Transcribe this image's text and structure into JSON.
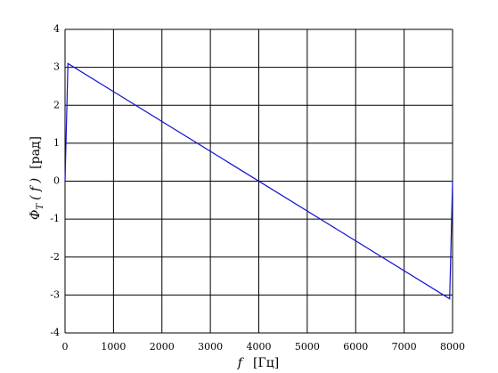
{
  "chart_data": {
    "type": "line",
    "x": [
      0,
      60,
      7940,
      8000
    ],
    "series": [
      {
        "color": "#1010d0",
        "values": [
          0,
          3.1,
          -3.1,
          0
        ]
      }
    ],
    "xlim": [
      0,
      8000
    ],
    "xticks": [
      0,
      1000,
      2000,
      3000,
      4000,
      5000,
      6000,
      7000,
      8000
    ],
    "ylim": [
      -4,
      4
    ],
    "yticks": [
      -4,
      -3,
      -2,
      -1,
      0,
      1,
      2,
      3,
      4
    ],
    "grid": true,
    "xlabel": [
      "f",
      "[Гц]"
    ],
    "ylabel": [
      "Φ",
      "T",
      "( f )",
      "[рад]"
    ]
  }
}
